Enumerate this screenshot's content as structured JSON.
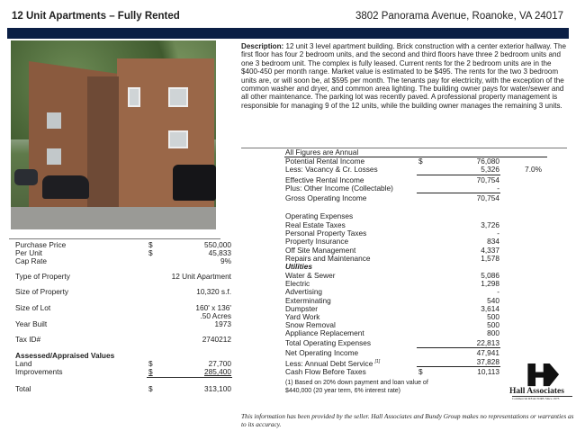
{
  "header": {
    "title": "12 Unit Apartments – Fully Rented",
    "address": "3802 Panorama Avenue, Roanoke, VA 24017",
    "bar_color": "#0b1f45"
  },
  "description": {
    "label": "Description:",
    "text": " 12 unit 3 level apartment building. Brick construction with a center exterior hallway. The first floor has four 2 bedroom units, and the second and third floors have three 2 bedroom units and one 3 bedroom unit. The complex is fully leased. Current rents for the 2 bedroom units are in the $400-450 per month range. Market value is estimated to be $495. The rents for the two 3 bedroom units are, or will soon be, at $595 per month. The tenants pay for electricity, with the exception of the common washer and dryer, and common area lighting. The building owner pays for water/sewer and all other maintenance. The parking lot was recently paved. A professional property management is responsible for managing 9 of the 12 units, while the building owner manages the remaining 3 units."
  },
  "property": {
    "purchase_price": {
      "label": "Purchase Price",
      "cur": "$",
      "value": "550,000"
    },
    "per_unit": {
      "label": "Per Unit",
      "cur": "$",
      "value": "45,833"
    },
    "cap_rate": {
      "label": "Cap Rate",
      "value": "9%"
    },
    "type": {
      "label": "Type of Property",
      "value": "12 Unit Apartment"
    },
    "size": {
      "label": "Size of Property",
      "value": "10,320 s.f."
    },
    "lot": {
      "label": "Size of Lot",
      "value": "160' x 136'",
      "value2": ".50 Acres"
    },
    "year": {
      "label": "Year Built",
      "value": "1973"
    },
    "tax": {
      "label": "Tax ID#",
      "value": "2740212"
    },
    "assessed": {
      "label": "Assessed/Appraised Values"
    },
    "land": {
      "label": "Land",
      "cur": "$",
      "value": "27,700"
    },
    "improvements": {
      "label": "Improvements",
      "cur": "$",
      "value": "285,400"
    },
    "total": {
      "label": "Total",
      "cur": "$",
      "value": "313,100"
    }
  },
  "financials": {
    "heading": "All Figures are Annual",
    "potential": {
      "label": "Potential Rental Income",
      "cur": "$",
      "value": "76,080"
    },
    "vacancy": {
      "label": "Less: Vacancy & Cr. Losses",
      "value": "5,326",
      "pct": "7.0%"
    },
    "effective": {
      "label": "Effective Rental Income",
      "value": "70,754"
    },
    "other": {
      "label": "Plus: Other Income (Collectable)",
      "value": "-"
    },
    "gross": {
      "label": "Gross Operating Income",
      "value": "70,754"
    },
    "opex_heading": "Operating Expenses",
    "expenses": [
      {
        "label": "Real Estate Taxes",
        "value": "3,726"
      },
      {
        "label": "Personal Property Taxes",
        "value": "-"
      },
      {
        "label": "Property Insurance",
        "value": "834"
      },
      {
        "label": "Off Site Management",
        "value": "4,337"
      },
      {
        "label": "Repairs and Maintenance",
        "value": "1,578"
      }
    ],
    "utilities_heading": "Utilities",
    "utilities": [
      {
        "label": "Water & Sewer",
        "value": "5,086"
      },
      {
        "label": "Electric",
        "value": "1,298"
      },
      {
        "label": "Advertising",
        "value": "-"
      },
      {
        "label": "Exterminating",
        "value": "540"
      },
      {
        "label": "Dumpster",
        "value": "3,614"
      },
      {
        "label": "Yard Work",
        "value": "500"
      },
      {
        "label": "Snow Removal",
        "value": "500"
      },
      {
        "label": "Appliance Replacement",
        "value": "800"
      }
    ],
    "total_opex": {
      "label": "Total Operating Expenses",
      "value": "22,813"
    },
    "noi": {
      "label": "Net Operating Income",
      "value": "47,941"
    },
    "debt": {
      "label": "Less: Annual Debt Service",
      "note": "[1]",
      "value": "37,828"
    },
    "cash": {
      "label": "Cash Flow Before Taxes",
      "cur": "$",
      "value": "10,113"
    },
    "footnote1": "(1) Based on 20% down payment and loan value of",
    "footnote2": "$440,000 (20 year term, 6% interest rate)"
  },
  "logo": {
    "name": "Hall Associates",
    "tagline": "Commercial REALTORS Since 1973"
  },
  "disclaimer": "This information has been provided by the seller.  Hall Associates and Bundy Group makes no representations or warranties as to its accuracy."
}
